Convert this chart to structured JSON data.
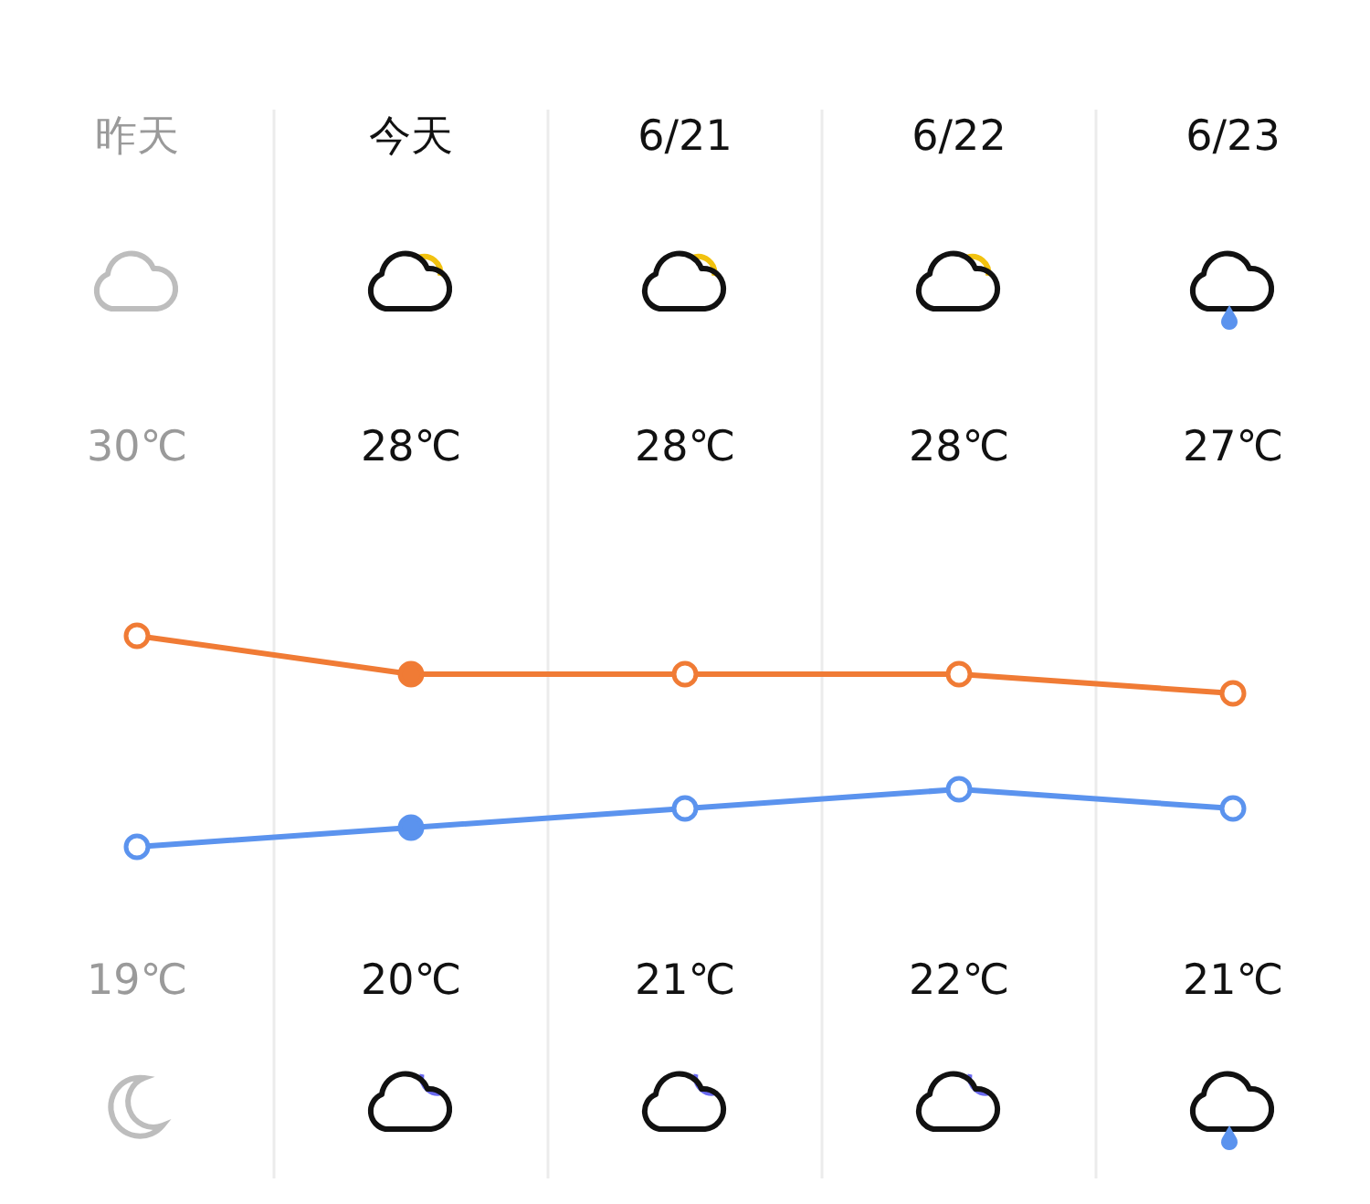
{
  "chart_data": {
    "type": "line",
    "categories": [
      "昨天",
      "今天",
      "6/21",
      "6/22",
      "6/23"
    ],
    "series": [
      {
        "color": "#f07b35",
        "values": [
          30,
          28,
          28,
          28,
          27
        ],
        "value_labels": [
          "30℃",
          "28℃",
          "28℃",
          "28℃",
          "27℃"
        ]
      },
      {
        "color": "#5b93ee",
        "values": [
          19,
          20,
          21,
          22,
          21
        ],
        "value_labels": [
          "19℃",
          "20℃",
          "21℃",
          "22℃",
          "21℃"
        ]
      }
    ],
    "marker": "circle",
    "line_style": "solid",
    "grid": "x"
  }
}
